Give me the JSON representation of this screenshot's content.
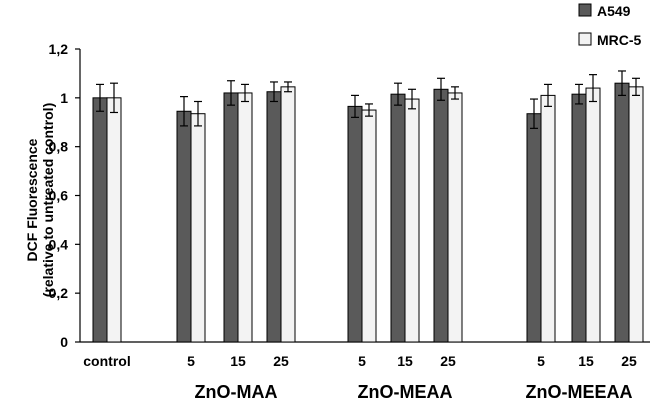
{
  "chart_data": {
    "type": "bar",
    "ylabel_line1": "DCF Fluorescence",
    "ylabel_line2": "(relative to untreated control)",
    "ylim": [
      0,
      1.2
    ],
    "yticks": [
      0,
      0.2,
      0.4,
      0.6,
      0.8,
      1,
      1.2
    ],
    "ytick_labels": [
      "0",
      "0,2",
      "0,4",
      "0,6",
      "0,8",
      "1",
      "1,2"
    ],
    "legend_position": "top-right",
    "categories": [
      "control",
      "5",
      "15",
      "25",
      "5",
      "15",
      "25",
      "5",
      "15",
      "25"
    ],
    "groups": [
      {
        "label": "ZnO-MAA",
        "category_indices": [
          1,
          2,
          3
        ]
      },
      {
        "label": "ZnO-MEAA",
        "category_indices": [
          4,
          5,
          6
        ]
      },
      {
        "label": "ZnO-MEEAA",
        "category_indices": [
          7,
          8,
          9
        ]
      }
    ],
    "series": [
      {
        "name": "A549",
        "color": "#5a5a5a",
        "values": [
          1.0,
          0.945,
          1.02,
          1.025,
          0.965,
          1.015,
          1.035,
          0.935,
          1.015,
          1.06
        ],
        "errors": [
          0.055,
          0.06,
          0.05,
          0.04,
          0.045,
          0.045,
          0.045,
          0.06,
          0.04,
          0.05
        ]
      },
      {
        "name": "MRC-5",
        "color": "#f3f3f3",
        "values": [
          1.0,
          0.935,
          1.02,
          1.045,
          0.95,
          0.995,
          1.02,
          1.01,
          1.04,
          1.045
        ],
        "errors": [
          0.06,
          0.05,
          0.035,
          0.02,
          0.025,
          0.04,
          0.025,
          0.045,
          0.055,
          0.035
        ]
      }
    ]
  }
}
